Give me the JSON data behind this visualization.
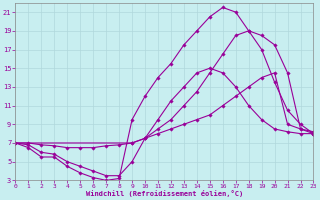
{
  "xlabel": "Windchill (Refroidissement éolien,°C)",
  "bg_color": "#c8eef0",
  "grid_color": "#b0d8dc",
  "line_color": "#990099",
  "xlim": [
    0,
    23
  ],
  "ylim": [
    3,
    22
  ],
  "xticks": [
    0,
    1,
    2,
    3,
    4,
    5,
    6,
    7,
    8,
    9,
    10,
    11,
    12,
    13,
    14,
    15,
    16,
    17,
    18,
    19,
    20,
    21,
    22,
    23
  ],
  "yticks": [
    3,
    5,
    7,
    9,
    11,
    13,
    15,
    17,
    19,
    21
  ],
  "curve1_x": [
    0,
    1,
    2,
    3,
    4,
    5,
    6,
    7,
    8,
    9,
    10,
    11,
    12,
    13,
    14,
    15,
    16,
    17,
    18,
    19,
    20,
    21,
    22,
    23
  ],
  "curve1_y": [
    7,
    6.5,
    5.5,
    5.5,
    4.5,
    3.8,
    3.3,
    3.0,
    3.2,
    9.5,
    12.0,
    14.0,
    15.5,
    17.5,
    19.0,
    20.5,
    21.5,
    21.0,
    19.0,
    17.0,
    13.5,
    10.5,
    9.0,
    8.0
  ],
  "curve2_x": [
    0,
    1,
    2,
    3,
    4,
    5,
    6,
    7,
    8,
    9,
    10,
    11,
    12,
    13,
    14,
    15,
    16,
    17,
    18,
    19,
    20,
    21,
    22,
    23
  ],
  "curve2_y": [
    7,
    6.8,
    6.0,
    5.8,
    5.0,
    4.5,
    4.0,
    3.5,
    3.5,
    5.0,
    7.5,
    9.5,
    11.5,
    13.0,
    14.5,
    15.0,
    14.5,
    13.0,
    11.0,
    9.5,
    8.5,
    8.2,
    8.0,
    8.0
  ],
  "curve3_x": [
    0,
    1,
    2,
    3,
    4,
    5,
    6,
    7,
    8,
    9,
    10,
    11,
    12,
    13,
    14,
    15,
    16,
    17,
    18,
    19,
    20,
    21,
    22,
    23
  ],
  "curve3_y": [
    7,
    7.0,
    6.8,
    6.7,
    6.5,
    6.5,
    6.5,
    6.7,
    6.8,
    7.0,
    7.5,
    8.0,
    8.5,
    9.0,
    9.5,
    10.0,
    11.0,
    12.0,
    13.0,
    14.0,
    14.5,
    9.0,
    8.5,
    8.2
  ],
  "curve4_x": [
    0,
    9,
    10,
    11,
    12,
    13,
    14,
    15,
    16,
    17,
    18,
    19,
    20,
    21,
    22,
    23
  ],
  "curve4_y": [
    7,
    7.0,
    7.5,
    8.5,
    9.5,
    11.0,
    12.5,
    14.5,
    16.5,
    18.5,
    19.0,
    18.5,
    17.5,
    14.5,
    8.5,
    8.0
  ]
}
